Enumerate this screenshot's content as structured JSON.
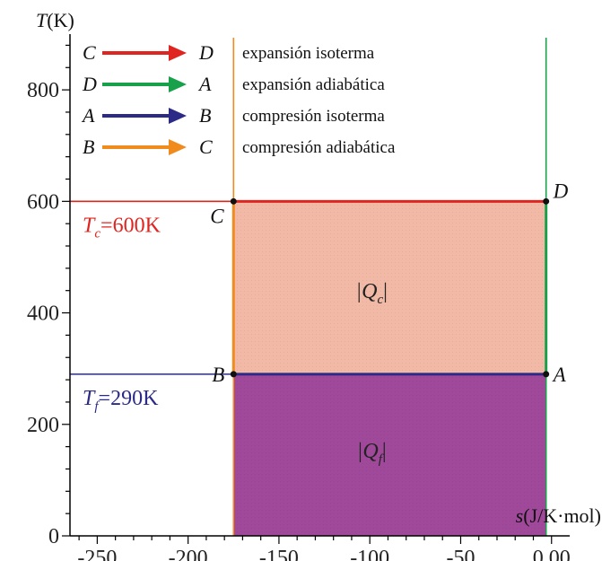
{
  "chart_data": {
    "type": "area",
    "xlabel": "s(J/K·mol)",
    "ylabel": "T(K)",
    "xlim": [
      -265,
      10
    ],
    "ylim": [
      0,
      900
    ],
    "x_ticks": [
      "-250",
      "-200",
      "-150",
      "-100",
      "-50",
      "0.00"
    ],
    "x_tick_values": [
      -250,
      -200,
      -150,
      -100,
      -50,
      0
    ],
    "y_ticks": [
      "0",
      "200",
      "400",
      "600",
      "800"
    ],
    "y_tick_values": [
      0,
      200,
      400,
      600,
      800
    ],
    "grid": false,
    "legend": {
      "placement": "top-left",
      "entries": [
        {
          "from": "C",
          "to": "D",
          "label": "expansión isoterma",
          "color": "#e0241f"
        },
        {
          "from": "D",
          "to": "A",
          "label": "expansión adiabática",
          "color": "#19a04a"
        },
        {
          "from": "A",
          "to": "B",
          "label": "compresión isoterma",
          "color": "#2b2b87"
        },
        {
          "from": "B",
          "to": "C",
          "label": "compresión adiabática",
          "color": "#f08c1e"
        }
      ]
    },
    "points": [
      {
        "name": "A",
        "x": -3,
        "y": 290
      },
      {
        "name": "B",
        "x": -175,
        "y": 290
      },
      {
        "name": "C",
        "x": -175,
        "y": 600
      },
      {
        "name": "D",
        "x": -3,
        "y": 600
      }
    ],
    "segments": [
      {
        "from": "C",
        "to": "D",
        "color": "#e0241f"
      },
      {
        "from": "D",
        "to": "A",
        "color": "#19a04a"
      },
      {
        "from": "A",
        "to": "B",
        "color": "#2b2b87"
      },
      {
        "from": "B",
        "to": "C",
        "color": "#f08c1e"
      }
    ],
    "isotherm_labels": [
      {
        "label": "T",
        "subscript": "c",
        "value_text": "=600K",
        "y": 600,
        "color": "#e0241f"
      },
      {
        "label": "T",
        "subscript": "f",
        "value_text": "=290K",
        "y": 290,
        "color": "#2b2b87"
      }
    ],
    "regions": [
      {
        "label": "|Q",
        "subscript": "c",
        "x": [
          -175,
          -3
        ],
        "y": [
          290,
          600
        ],
        "color": "#f2b9a6"
      },
      {
        "label": "|Q",
        "subscript": "f",
        "x": [
          -175,
          -3
        ],
        "y": [
          0,
          290
        ],
        "color": "#a0489a"
      }
    ],
    "reference_lines": [
      {
        "axis": "x",
        "value": -175,
        "color": "#f08c1e"
      },
      {
        "axis": "x",
        "value": -3,
        "color": "#19a04a"
      }
    ]
  }
}
